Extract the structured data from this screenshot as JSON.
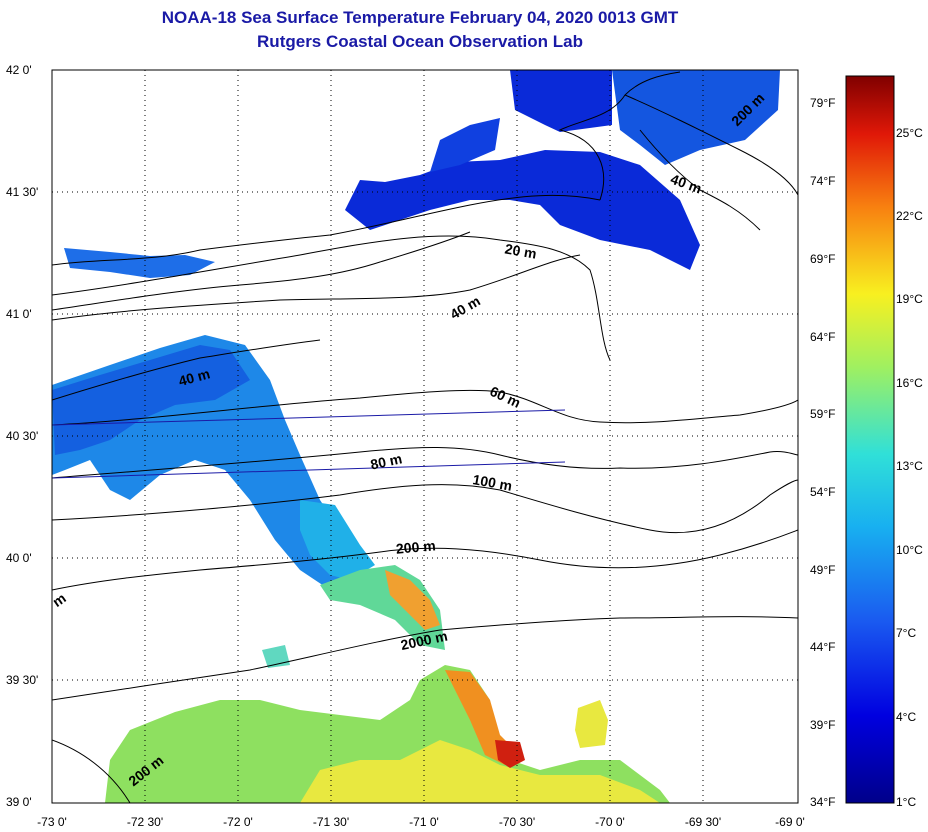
{
  "header": {
    "title": "NOAA-18 Sea Surface Temperature February 04, 2020 0013 GMT",
    "subtitle": "Rutgers Coastal Ocean Observation Lab"
  },
  "axes": {
    "lat_labels": [
      "42 0'",
      "41 30'",
      "41 0'",
      "40 30'",
      "40 0'",
      "39 30'",
      "39 0'"
    ],
    "lon_labels": [
      "-73 0'",
      "-72 30'",
      "-72 0'",
      "-71 30'",
      "-71 0'",
      "-70 30'",
      "-70 0'",
      "-69 30'",
      "-69 0'"
    ],
    "fahrenheit_labels": [
      "79°F",
      "74°F",
      "69°F",
      "64°F",
      "59°F",
      "54°F",
      "49°F",
      "44°F",
      "39°F",
      "34°F"
    ],
    "celsius_labels": [
      "25°C",
      "22°C",
      "19°C",
      "16°C",
      "13°C",
      "10°C",
      "7°C",
      "4°C",
      "1°C"
    ]
  },
  "contours": [
    "200 m",
    "40 m",
    "20 m",
    "40 m",
    "40 m",
    "60 m",
    "80 m",
    "100 m",
    "200 m",
    "m",
    "2000 m",
    "200 m"
  ],
  "colors": {
    "title": "#1a1aa6",
    "cold": "#0a2ad8",
    "mid": "#1e88e8",
    "cyan": "#20c8e0",
    "green": "#8ee060",
    "yellow": "#f0e840",
    "orange": "#f09020",
    "red": "#d02010"
  }
}
